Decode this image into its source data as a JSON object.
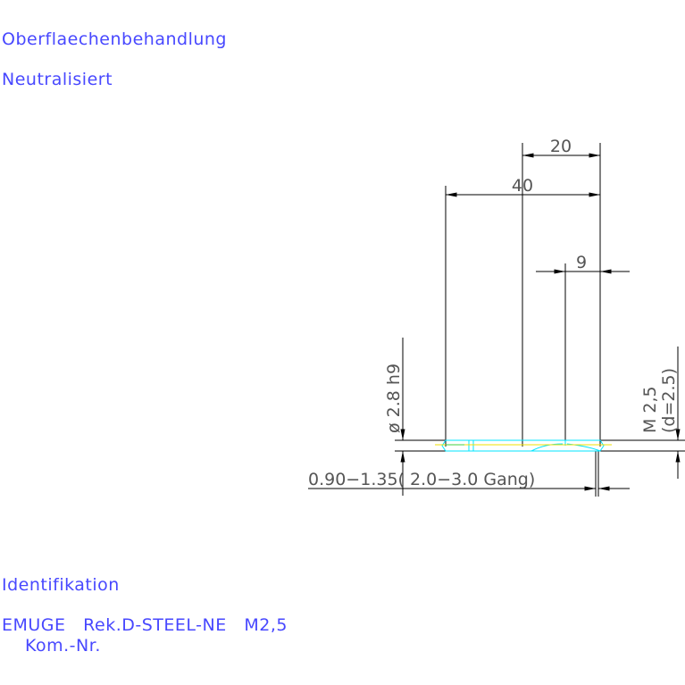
{
  "header": {
    "surface_label": "Oberflaechenbehandlung",
    "surface_value": "Neutralisiert"
  },
  "footer": {
    "ident_label": "Identifikation",
    "ident_brand": "EMUGE",
    "ident_product": "Rek.D-STEEL-NE",
    "ident_size": "M2,5",
    "kom_label": "Kom.-Nr."
  },
  "drawing": {
    "dim_20": "20",
    "dim_40": "40",
    "dim_9": "9",
    "dim_diameter": "ø 2.8 h9",
    "dim_thread": "M 2,5",
    "dim_thread_d": "(d=2.5)",
    "dim_chamfer": "0.90−1.35( 2.0−3.0 Gang)",
    "colors": {
      "text": "#4848ff",
      "lines": "#000000",
      "tool_outline": "#00e5ff",
      "centerline": "#f0e000"
    }
  }
}
